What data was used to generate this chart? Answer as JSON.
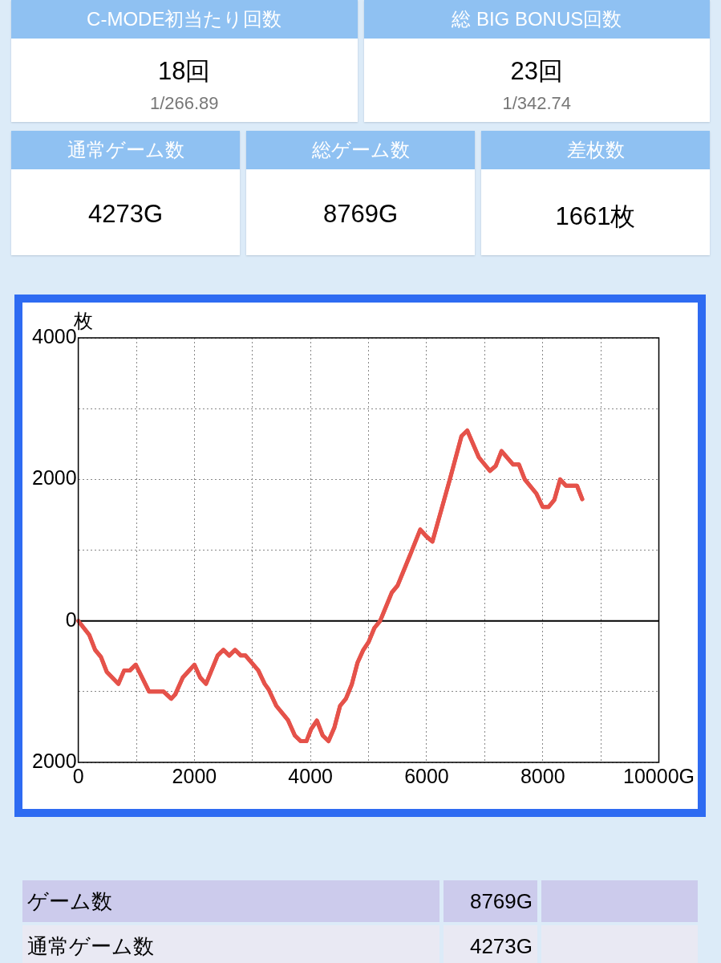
{
  "chart_data": [
    {
      "type": "other",
      "categories": [
        "C-MODE初当たり回数",
        "総 BIG BONUS回数",
        "通常ゲーム数",
        "総ゲーム数",
        "差枚数"
      ],
      "value_labels": [
        "18回",
        "23回",
        "4273G",
        "8769G",
        "1661枚"
      ],
      "annotations": [
        "1/266.89",
        "1/342.74"
      ]
    },
    {
      "type": "line",
      "ylabel": "枚",
      "xlim": [
        0,
        10000
      ],
      "ylim": [
        -2000,
        4000
      ],
      "xticks": [
        0,
        {
          "value": 1000,
          "label": null
        },
        2000,
        {
          "value": 3000,
          "label": null
        },
        4000,
        {
          "value": 5000,
          "label": null
        },
        6000,
        {
          "value": 7000,
          "label": null
        },
        8000,
        {
          "value": 9000,
          "label": null
        },
        {
          "value": 10000,
          "label": "10000G"
        }
      ],
      "yticks": [
        {
          "value": -2000,
          "label": "2000"
        },
        {
          "value": -1000,
          "label": null
        },
        0,
        {
          "value": 1000,
          "label": null
        },
        2000,
        {
          "value": 3000,
          "label": null
        },
        4000
      ],
      "grid": true,
      "legend": false,
      "marker": "none",
      "line_style": "solid",
      "ref_lines": [
        {
          "axis": "y",
          "value": 0,
          "color": "#000000"
        }
      ],
      "series": [
        {
          "color": "#e5524a",
          "x": [
            0,
            190,
            290,
            390,
            490,
            690,
            790,
            890,
            990,
            1220,
            1470,
            1600,
            1670,
            1800,
            2000,
            2100,
            2200,
            2400,
            2500,
            2600,
            2700,
            2800,
            2880,
            3100,
            3210,
            3280,
            3410,
            3610,
            3730,
            3830,
            3930,
            4010,
            4110,
            4210,
            4310,
            4410,
            4510,
            4610,
            4710,
            4810,
            4910,
            5000,
            5100,
            5200,
            5400,
            5500,
            5700,
            5890,
            6000,
            6100,
            6400,
            6600,
            6700,
            6900,
            7090,
            7190,
            7290,
            7490,
            7590,
            7690,
            7890,
            8000,
            8100,
            8200,
            8300,
            8400,
            8590,
            8680
          ],
          "values": [
            0,
            -200,
            -410,
            -510,
            -720,
            -890,
            -700,
            -700,
            -620,
            -1000,
            -1000,
            -1100,
            -1040,
            -800,
            -620,
            -800,
            -890,
            -490,
            -410,
            -490,
            -410,
            -490,
            -490,
            -700,
            -890,
            -970,
            -1200,
            -1400,
            -1620,
            -1700,
            -1700,
            -1530,
            -1410,
            -1620,
            -1700,
            -1510,
            -1200,
            -1100,
            -900,
            -590,
            -410,
            -300,
            -100,
            0,
            400,
            500,
            900,
            1290,
            1190,
            1120,
            2000,
            2610,
            2690,
            2310,
            2120,
            2190,
            2400,
            2210,
            2210,
            2000,
            1800,
            1610,
            1610,
            1710,
            2000,
            1910,
            1910,
            1720
          ]
        }
      ]
    },
    {
      "type": "other",
      "categories": [
        "ゲーム数",
        "通常ゲーム数"
      ],
      "value_labels": [
        "8769G",
        "4273G"
      ]
    }
  ]
}
